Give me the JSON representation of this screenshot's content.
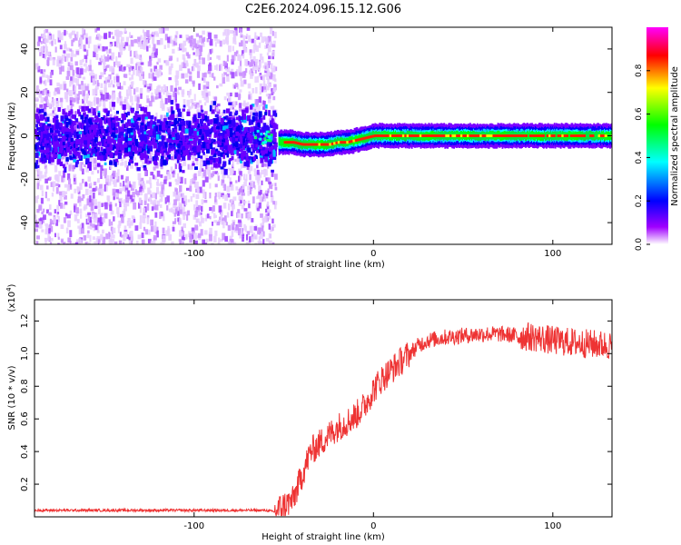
{
  "title": "C2E6.2024.096.15.12.G06",
  "chart_data": [
    {
      "type": "heatmap",
      "xlabel": "Height of straight line (km)",
      "ylabel": "Frequency (Hz)",
      "xlim": [
        -189,
        133
      ],
      "ylim": [
        -50,
        50
      ],
      "xticks": [
        -100,
        0,
        100
      ],
      "yticks": [
        -40,
        -20,
        0,
        20,
        40
      ],
      "colorbar": {
        "label": "Normalized spectral amplitude",
        "range": [
          0,
          1
        ],
        "ticks": [
          "0.0",
          "0.2",
          "0.4",
          "0.6",
          "0.8"
        ],
        "colormap": [
          "#ff00ff",
          "#ff0000",
          "#ffff00",
          "#00ff00",
          "#00ffff",
          "#0000ff",
          "#8000ff",
          "#ffffff"
        ]
      },
      "noise_region_x": [
        -189,
        -55
      ],
      "track": {
        "x": [
          -52,
          -45,
          -40,
          -35,
          -30,
          -25,
          -20,
          -15,
          -10,
          -5,
          0,
          5,
          10,
          20,
          40,
          60,
          80,
          100,
          120,
          133
        ],
        "y": [
          -3,
          -3,
          -4,
          -4,
          -4,
          -4,
          -3,
          -3,
          -2,
          -1,
          0,
          0,
          0,
          0,
          0,
          0,
          0,
          0,
          0,
          0
        ]
      }
    },
    {
      "type": "line",
      "xlabel": "Height of straight line (km)",
      "ylabel": "SNR (10 * v/v)",
      "scale_label": "(x10",
      "scale_exponent": "4",
      "xlim": [
        -189,
        133
      ],
      "ylim": [
        0,
        1.33
      ],
      "xticks": [
        -100,
        0,
        100
      ],
      "yticks": [
        0.2,
        0.4,
        0.6,
        0.8,
        1.0,
        1.2
      ],
      "color": "#ee3333",
      "x": [
        -189,
        -150,
        -100,
        -70,
        -60,
        -55,
        -50,
        -45,
        -40,
        -35,
        -30,
        -25,
        -20,
        -15,
        -10,
        -5,
        0,
        5,
        10,
        15,
        20,
        25,
        30,
        40,
        50,
        60,
        70,
        80,
        90,
        100,
        110,
        120,
        133
      ],
      "y": [
        0.04,
        0.04,
        0.04,
        0.04,
        0.04,
        0.03,
        0.07,
        0.1,
        0.25,
        0.4,
        0.45,
        0.5,
        0.55,
        0.58,
        0.62,
        0.68,
        0.78,
        0.85,
        0.9,
        0.95,
        1.0,
        1.05,
        1.08,
        1.1,
        1.11,
        1.12,
        1.12,
        1.11,
        1.1,
        1.08,
        1.07,
        1.06,
        1.05
      ]
    }
  ]
}
